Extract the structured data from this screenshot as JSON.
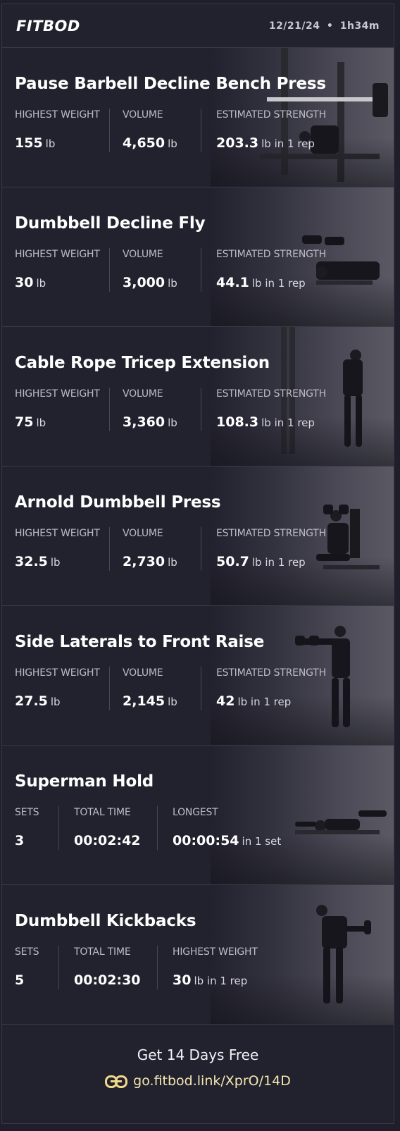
{
  "header": {
    "logo": "FITBOD",
    "date": "12/21/24",
    "separator": "•",
    "duration": "1h34m"
  },
  "exercises": [
    {
      "title": "Pause Barbell Decline Bench Press",
      "image_icon": "barbell-bench-press-photo",
      "stats": [
        {
          "label": "HIGHEST WEIGHT",
          "value": "155",
          "unit": "lb"
        },
        {
          "label": "VOLUME",
          "value": "4,650",
          "unit": "lb"
        },
        {
          "label": "ESTIMATED STRENGTH",
          "value": "203.3",
          "unit": "lb in 1 rep"
        }
      ]
    },
    {
      "title": "Dumbbell Decline Fly",
      "image_icon": "dumbbell-fly-photo",
      "stats": [
        {
          "label": "HIGHEST WEIGHT",
          "value": "30",
          "unit": "lb"
        },
        {
          "label": "VOLUME",
          "value": "3,000",
          "unit": "lb"
        },
        {
          "label": "ESTIMATED STRENGTH",
          "value": "44.1",
          "unit": "lb in 1 rep"
        }
      ]
    },
    {
      "title": "Cable Rope Tricep Extension",
      "image_icon": "cable-tricep-photo",
      "stats": [
        {
          "label": "HIGHEST WEIGHT",
          "value": "75",
          "unit": "lb"
        },
        {
          "label": "VOLUME",
          "value": "3,360",
          "unit": "lb"
        },
        {
          "label": "ESTIMATED STRENGTH",
          "value": "108.3",
          "unit": "lb in 1 rep"
        }
      ]
    },
    {
      "title": "Arnold Dumbbell Press",
      "image_icon": "arnold-press-photo",
      "stats": [
        {
          "label": "HIGHEST WEIGHT",
          "value": "32.5",
          "unit": "lb"
        },
        {
          "label": "VOLUME",
          "value": "2,730",
          "unit": "lb"
        },
        {
          "label": "ESTIMATED STRENGTH",
          "value": "50.7",
          "unit": "lb in 1 rep"
        }
      ]
    },
    {
      "title": "Side Laterals to Front Raise",
      "image_icon": "lateral-raise-photo",
      "stats": [
        {
          "label": "HIGHEST WEIGHT",
          "value": "27.5",
          "unit": "lb"
        },
        {
          "label": "VOLUME",
          "value": "2,145",
          "unit": "lb"
        },
        {
          "label": "ESTIMATED STRENGTH",
          "value": "42",
          "unit": "lb in 1 rep"
        }
      ]
    },
    {
      "title": "Superman Hold",
      "image_icon": "superman-hold-photo",
      "stats": [
        {
          "label": "SETS",
          "value": "3",
          "unit": ""
        },
        {
          "label": "TOTAL TIME",
          "value": "00:02:42",
          "unit": ""
        },
        {
          "label": "LONGEST",
          "value": "00:00:54",
          "unit": "in 1 set"
        }
      ]
    },
    {
      "title": "Dumbbell Kickbacks",
      "image_icon": "dumbbell-kickback-photo",
      "stats": [
        {
          "label": "SETS",
          "value": "5",
          "unit": ""
        },
        {
          "label": "TOTAL TIME",
          "value": "00:02:30",
          "unit": ""
        },
        {
          "label": "HIGHEST WEIGHT",
          "value": "30",
          "unit": "lb in 1 rep"
        }
      ]
    }
  ],
  "footer": {
    "cta": "Get 14 Days Free",
    "link_icon": "link-icon",
    "link": "go.fitbod.link/XprO/14D"
  }
}
